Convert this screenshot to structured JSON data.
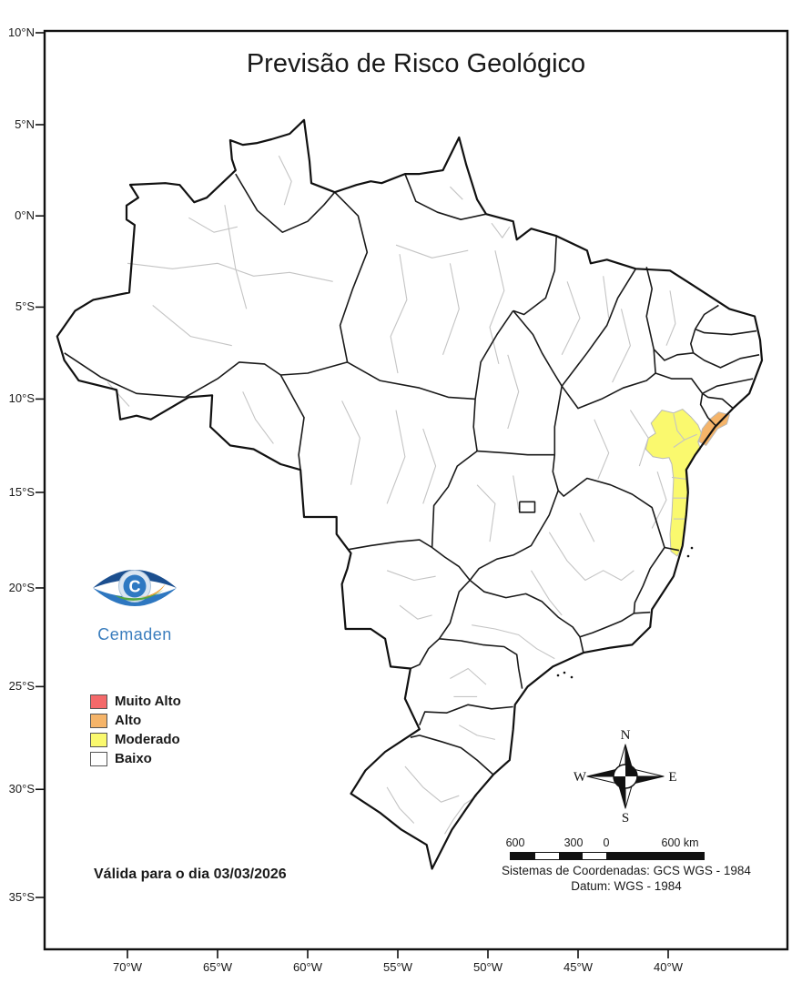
{
  "map": {
    "title": "Previsão de Risco Geológico",
    "validity_note": "Válida para o dia 03/03/2026",
    "logo_text": "Cemaden",
    "legend": {
      "items": [
        {
          "label": "Muito Alto",
          "color": "#F4696A"
        },
        {
          "label": "Alto",
          "color": "#F5B469"
        },
        {
          "label": "Moderado",
          "color": "#FAF96E"
        },
        {
          "label": "Baixo",
          "color": "#FFFFFF"
        }
      ]
    },
    "risk_regions_shown": [
      {
        "level": "Moderado",
        "color": "#FAF96E"
      },
      {
        "level": "Alto",
        "color": "#F5B469"
      }
    ],
    "compass": {
      "north": "N",
      "east": "E",
      "south": "S",
      "west": "W"
    },
    "scale_bar": {
      "labels": [
        "600",
        "300",
        "0",
        "600 km"
      ]
    },
    "credits": [
      "Sistemas de Coordenadas: GCS WGS - 1984",
      "Datum: WGS - 1984"
    ],
    "axes": {
      "lat_labels": [
        "10°N",
        "5°N",
        "0°N",
        "5°S",
        "10°S",
        "15°S",
        "20°S",
        "25°S",
        "30°S",
        "35°S"
      ],
      "lon_labels": [
        "70°W",
        "65°W",
        "60°W",
        "55°W",
        "50°W",
        "45°W",
        "40°W"
      ]
    },
    "colors": {
      "frame": "#111111",
      "state_border": "#1a1a1a",
      "region_border": "#c4c4c4",
      "muito_alto": "#F4696A",
      "alto": "#F5B469",
      "moderado": "#FAF96E",
      "baixo": "#FFFFFF",
      "logo_blue": "#3a7dbd"
    }
  }
}
